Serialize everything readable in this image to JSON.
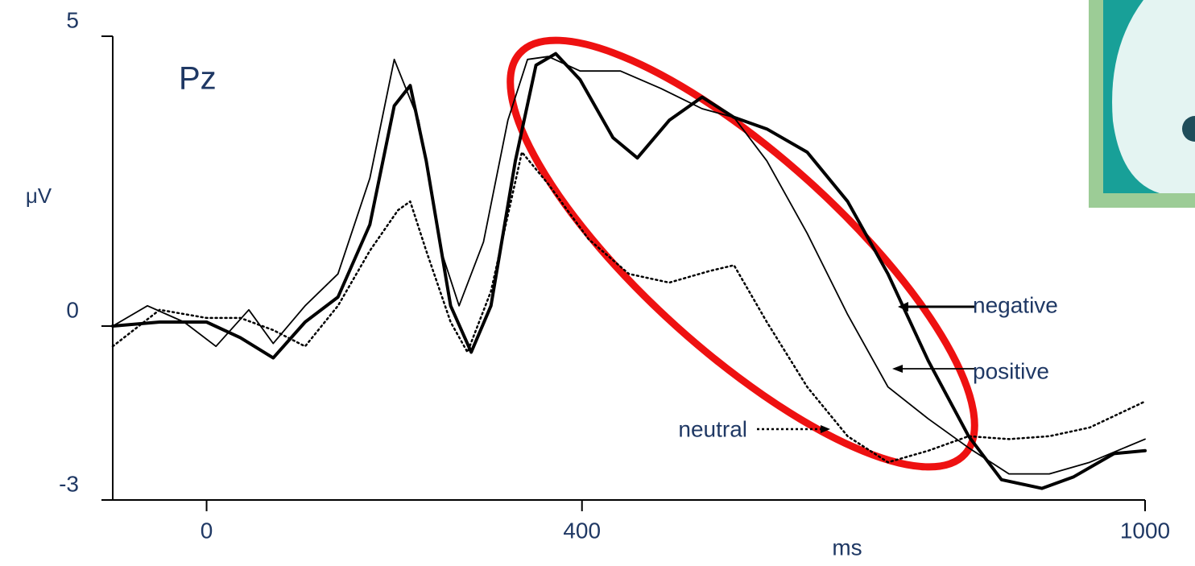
{
  "chart_data": {
    "type": "line",
    "title": "Pz",
    "y_label": "μV",
    "x_label": "ms",
    "xlim": [
      -100,
      1000
    ],
    "xticks": [
      0,
      400,
      1000
    ],
    "ylim": [
      -3,
      5
    ],
    "yticks": [
      -3,
      0,
      5
    ],
    "series": [
      {
        "name": "negative",
        "color": "#000000",
        "line_width": 4,
        "dashed": false,
        "x": [
          -100,
          -50,
          0,
          36,
          71,
          105,
          140,
          174,
          200,
          217,
          234,
          260,
          282,
          303,
          329,
          351,
          372,
          398,
          433,
          459,
          493,
          528,
          562,
          597,
          640,
          683,
          726,
          769,
          812,
          847,
          890,
          924,
          967,
          1000
        ],
        "values": [
          0,
          0.07,
          0.07,
          -0.2,
          -0.55,
          0.07,
          0.5,
          1.75,
          3.8,
          4.15,
          2.85,
          0.35,
          -0.45,
          0.35,
          2.85,
          4.5,
          4.7,
          4.25,
          3.25,
          2.9,
          3.55,
          3.95,
          3.6,
          3.4,
          3.0,
          2.15,
          0.9,
          -0.6,
          -1.9,
          -2.65,
          -2.8,
          -2.6,
          -2.2,
          -2.15
        ]
      },
      {
        "name": "positive",
        "color": "#000000",
        "line_width": 1.8,
        "dashed": false,
        "x": [
          -100,
          -63,
          -24,
          10,
          45,
          71,
          105,
          140,
          174,
          200,
          226,
          252,
          269,
          295,
          321,
          342,
          364,
          398,
          441,
          484,
          528,
          562,
          597,
          640,
          683,
          726,
          769,
          812,
          855,
          898,
          941,
          1000
        ],
        "values": [
          0,
          0.35,
          0.07,
          -0.35,
          0.28,
          -0.3,
          0.35,
          0.9,
          2.55,
          4.6,
          3.55,
          1.2,
          0.35,
          1.45,
          3.55,
          4.6,
          4.65,
          4.4,
          4.4,
          4.1,
          3.75,
          3.6,
          2.85,
          1.6,
          0.2,
          -1.05,
          -1.6,
          -2.1,
          -2.55,
          -2.55,
          -2.35,
          -1.95
        ]
      },
      {
        "name": "neutral",
        "color": "#000000",
        "line_width": 2.5,
        "dashed": true,
        "x": [
          -100,
          -50,
          0,
          36,
          71,
          105,
          140,
          174,
          204,
          217,
          234,
          260,
          278,
          303,
          336,
          364,
          407,
          450,
          493,
          536,
          562,
          597,
          640,
          683,
          726,
          769,
          812,
          855,
          898,
          941,
          1000
        ],
        "values": [
          -0.35,
          0.28,
          0.14,
          0.14,
          -0.07,
          -0.35,
          0.35,
          1.3,
          2.0,
          2.15,
          1.3,
          0.07,
          -0.45,
          0.6,
          3.0,
          2.45,
          1.5,
          0.9,
          0.75,
          0.95,
          1.05,
          0.07,
          -1.05,
          -1.9,
          -2.35,
          -2.15,
          -1.9,
          -1.95,
          -1.9,
          -1.75,
          -1.3
        ]
      }
    ]
  }
}
